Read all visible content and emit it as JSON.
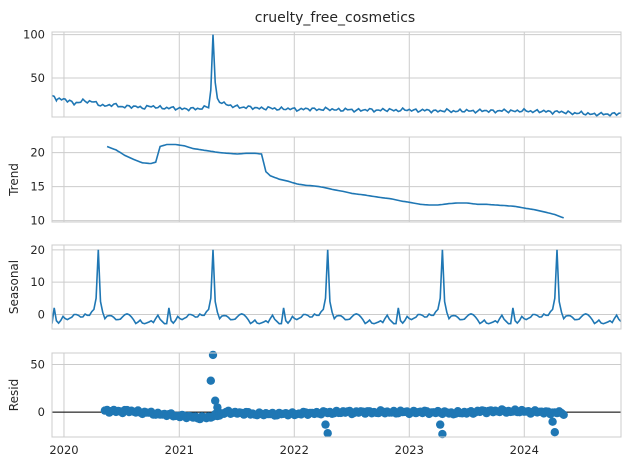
{
  "chart_data": {
    "type": "line",
    "title": "cruelty_free_cosmetics",
    "x_axis": {
      "ticks": [
        "2020",
        "2021",
        "2022",
        "2023",
        "2024"
      ],
      "range": [
        "2019-11-24",
        "2024-11-03"
      ]
    },
    "panels": [
      {
        "ylabel": "",
        "ylim": [
          5,
          103
        ],
        "yticks": [
          50,
          100
        ],
        "kind": "line",
        "series": {
          "anchors": [
            [
              "2019-11-24",
              29
            ],
            [
              "2019-12-10",
              25
            ],
            [
              "2020-01-05",
              26
            ],
            [
              "2020-02-02",
              20
            ],
            [
              "2020-03-01",
              24
            ],
            [
              "2020-04-05",
              22
            ],
            [
              "2020-05-03",
              18
            ],
            [
              "2020-06-07",
              19
            ],
            [
              "2020-07-05",
              17
            ],
            [
              "2020-08-02",
              17
            ],
            [
              "2020-09-06",
              16
            ],
            [
              "2020-10-04",
              17
            ],
            [
              "2020-11-01",
              16
            ],
            [
              "2020-12-06",
              15
            ],
            [
              "2021-01-03",
              15
            ],
            [
              "2021-02-07",
              14
            ],
            [
              "2021-03-07",
              15
            ],
            [
              "2021-04-04",
              17
            ],
            [
              "2021-04-11",
              35
            ],
            [
              "2021-04-18",
              100
            ],
            [
              "2021-04-25",
              45
            ],
            [
              "2021-05-02",
              25
            ],
            [
              "2021-06-06",
              18
            ],
            [
              "2021-08-01",
              16
            ],
            [
              "2021-10-03",
              15
            ],
            [
              "2022-01-02",
              14
            ],
            [
              "2022-04-03",
              14
            ],
            [
              "2022-07-03",
              13
            ],
            [
              "2022-10-02",
              13
            ],
            [
              "2023-01-01",
              13
            ],
            [
              "2023-04-02",
              12
            ],
            [
              "2023-07-02",
              12
            ],
            [
              "2023-10-01",
              12
            ],
            [
              "2024-01-07",
              12
            ],
            [
              "2024-04-07",
              11
            ],
            [
              "2024-07-07",
              9
            ],
            [
              "2024-09-01",
              8
            ],
            [
              "2024-11-03",
              9
            ]
          ]
        }
      },
      {
        "ylabel": "Trend",
        "ylim": [
          9.8,
          22.3
        ],
        "yticks": [
          10,
          15,
          20
        ],
        "kind": "line",
        "series": {
          "anchors": [
            [
              "2020-05-17",
              20.9
            ],
            [
              "2020-06-14",
              20.4
            ],
            [
              "2020-07-12",
              19.6
            ],
            [
              "2020-08-09",
              19.0
            ],
            [
              "2020-09-06",
              18.5
            ],
            [
              "2020-10-04",
              18.4
            ],
            [
              "2020-10-18",
              18.6
            ],
            [
              "2020-11-01",
              20.9
            ],
            [
              "2020-11-22",
              21.2
            ],
            [
              "2020-12-20",
              21.2
            ],
            [
              "2021-01-17",
              21.0
            ],
            [
              "2021-02-14",
              20.6
            ],
            [
              "2021-03-14",
              20.4
            ],
            [
              "2021-04-11",
              20.2
            ],
            [
              "2021-05-09",
              20.0
            ],
            [
              "2021-06-06",
              19.9
            ],
            [
              "2021-07-04",
              19.8
            ],
            [
              "2021-08-01",
              19.9
            ],
            [
              "2021-08-29",
              19.9
            ],
            [
              "2021-09-19",
              19.8
            ],
            [
              "2021-10-03",
              17.2
            ],
            [
              "2021-10-17",
              16.6
            ],
            [
              "2021-11-14",
              16.1
            ],
            [
              "2021-12-12",
              15.8
            ],
            [
              "2022-01-09",
              15.4
            ],
            [
              "2022-02-06",
              15.2
            ],
            [
              "2022-03-06",
              15.1
            ],
            [
              "2022-04-03",
              14.9
            ],
            [
              "2022-05-01",
              14.6
            ],
            [
              "2022-06-05",
              14.3
            ],
            [
              "2022-07-03",
              14.0
            ],
            [
              "2022-08-07",
              13.8
            ],
            [
              "2022-09-04",
              13.6
            ],
            [
              "2022-10-02",
              13.4
            ],
            [
              "2022-11-06",
              13.2
            ],
            [
              "2022-12-04",
              12.9
            ],
            [
              "2023-01-01",
              12.7
            ],
            [
              "2023-02-05",
              12.4
            ],
            [
              "2023-03-05",
              12.3
            ],
            [
              "2023-04-02",
              12.3
            ],
            [
              "2023-05-07",
              12.5
            ],
            [
              "2023-06-04",
              12.6
            ],
            [
              "2023-07-02",
              12.6
            ],
            [
              "2023-08-06",
              12.4
            ],
            [
              "2023-09-03",
              12.4
            ],
            [
              "2023-10-01",
              12.3
            ],
            [
              "2023-11-05",
              12.2
            ],
            [
              "2023-12-03",
              12.1
            ],
            [
              "2024-01-07",
              11.8
            ],
            [
              "2024-02-04",
              11.6
            ],
            [
              "2024-03-03",
              11.3
            ],
            [
              "2024-04-07",
              10.9
            ],
            [
              "2024-05-05",
              10.4
            ]
          ]
        }
      },
      {
        "ylabel": "Seasonal",
        "ylim": [
          -4.5,
          21.5
        ],
        "yticks": [
          0,
          10,
          20
        ],
        "kind": "seasonal",
        "series": {
          "start": "2019-11-24",
          "end": "2024-11-03",
          "pattern": [
            [
              0,
              -3
            ],
            [
              1,
              2
            ],
            [
              2,
              -2
            ],
            [
              3,
              -3
            ],
            [
              5,
              -1
            ],
            [
              7,
              -2
            ],
            [
              9,
              -1
            ],
            [
              11,
              0
            ],
            [
              13,
              -1
            ],
            [
              15,
              0
            ],
            [
              17,
              0
            ],
            [
              19,
              2
            ],
            [
              20,
              5
            ],
            [
              21,
              20
            ],
            [
              22,
              4
            ],
            [
              23,
              1
            ],
            [
              24,
              -1
            ],
            [
              26,
              0
            ],
            [
              28,
              -1
            ],
            [
              30,
              -2
            ],
            [
              32,
              -1
            ],
            [
              34,
              0
            ],
            [
              36,
              -1
            ],
            [
              38,
              -3
            ],
            [
              40,
              -2
            ],
            [
              42,
              -3
            ],
            [
              44,
              -2
            ],
            [
              46,
              -2
            ],
            [
              48,
              0
            ],
            [
              50,
              -2
            ],
            [
              52,
              -3
            ]
          ]
        }
      },
      {
        "ylabel": "Resid",
        "ylim": [
          -26,
          62
        ],
        "yticks": [
          0,
          50
        ],
        "kind": "scatter",
        "baseline": 0,
        "series": {
          "band": [
            [
              "2020-05-10",
              1
            ],
            [
              "2020-08-02",
              1
            ],
            [
              "2020-11-01",
              -2
            ],
            [
              "2021-02-07",
              -5
            ],
            [
              "2021-03-28",
              -6
            ],
            [
              "2021-06-06",
              0
            ],
            [
              "2021-09-05",
              -2
            ],
            [
              "2021-12-05",
              -2
            ],
            [
              "2022-03-06",
              -1
            ],
            [
              "2022-06-05",
              0
            ],
            [
              "2022-09-04",
              0
            ],
            [
              "2022-12-04",
              0
            ],
            [
              "2023-03-05",
              0
            ],
            [
              "2023-06-04",
              -1
            ],
            [
              "2023-09-03",
              1
            ],
            [
              "2023-12-03",
              1
            ],
            [
              "2024-03-03",
              0
            ],
            [
              "2024-05-05",
              -1
            ]
          ],
          "outliers": [
            [
              "2021-04-11",
              33
            ],
            [
              "2021-04-18",
              60
            ],
            [
              "2021-04-25",
              12
            ],
            [
              "2021-05-02",
              5
            ],
            [
              "2022-04-10",
              -13
            ],
            [
              "2022-04-17",
              -22
            ],
            [
              "2023-04-09",
              -13
            ],
            [
              "2023-04-16",
              -23
            ],
            [
              "2024-03-31",
              -10
            ],
            [
              "2024-04-07",
              -21
            ]
          ]
        }
      }
    ]
  }
}
